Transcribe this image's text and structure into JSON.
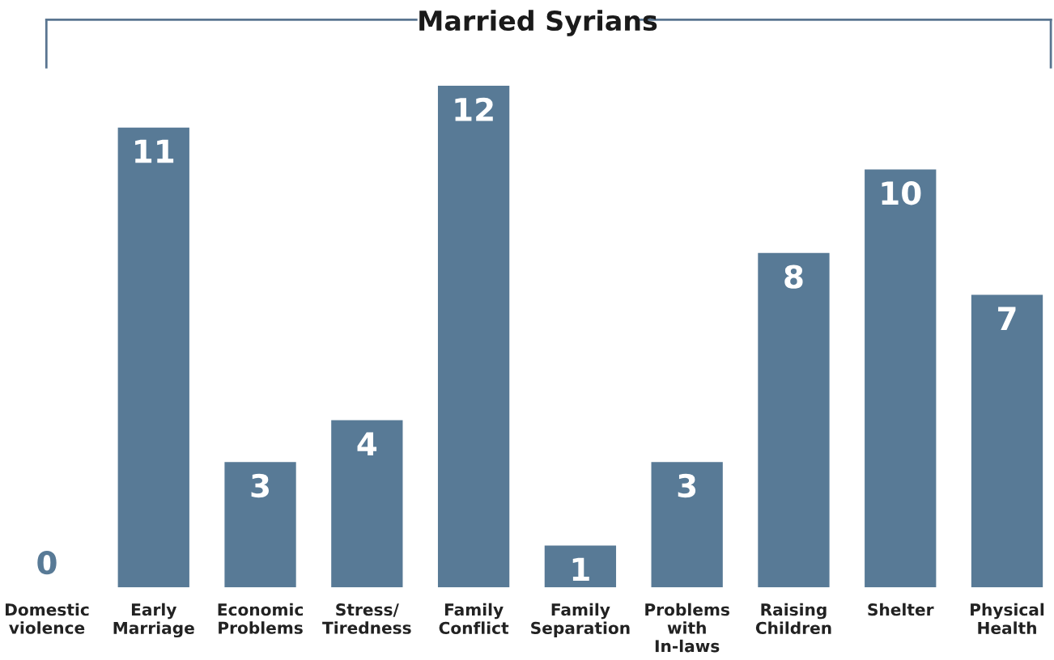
{
  "chart_data": {
    "type": "bar",
    "title": "Married Syrians",
    "categories": [
      "Domestic\nviolence",
      "Early\nMarriage",
      "Economic\nProblems",
      "Stress/\nTiredness",
      "Family\nConflict",
      "Family\nSeparation",
      "Problems\nwith\nIn-laws",
      "Raising\nChildren",
      "Shelter",
      "Physical\nHealth"
    ],
    "values": [
      0,
      11,
      3,
      4,
      12,
      1,
      3,
      8,
      10,
      7
    ],
    "color": "#587a96",
    "data_labels": true,
    "tick_labels": "x",
    "grid": false,
    "legend": false
  }
}
